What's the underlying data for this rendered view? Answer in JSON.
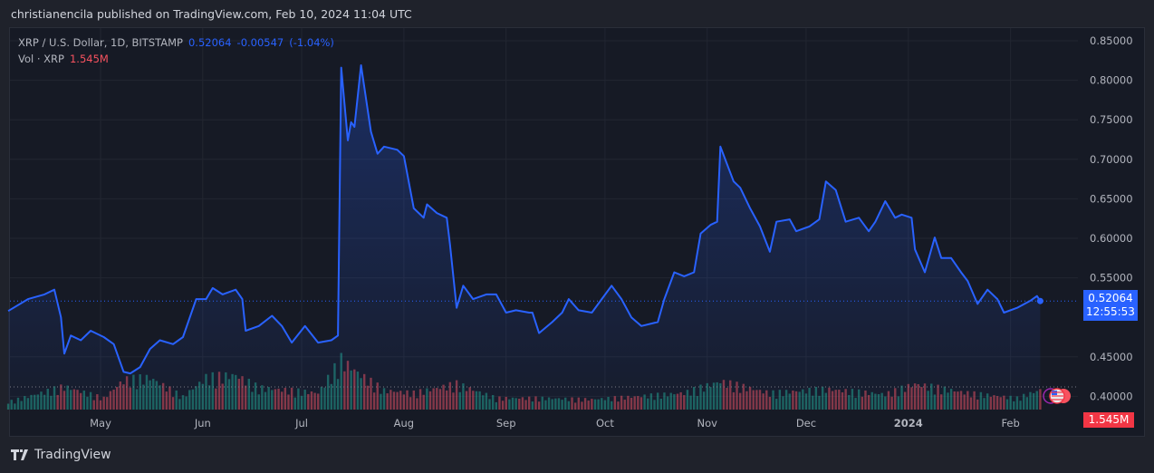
{
  "header": {
    "published": "christianencila published on TradingView.com, Feb 10, 2024 11:04 UTC"
  },
  "legend": {
    "symbol": "XRP / U.S. Dollar, 1D, BITSTAMP",
    "price": "0.52064",
    "change": "-0.00547",
    "change_pct": "(-1.04%)",
    "vol_label": "Vol · XRP",
    "vol_value": "1.545M"
  },
  "price_label": {
    "price": "0.52064",
    "countdown": "12:55:53"
  },
  "volume_label": "1.545M",
  "footer": {
    "brand": "TradingView"
  },
  "colors": {
    "line": "#2962ff",
    "up": "#22ab94",
    "down": "#f7525f",
    "price_tag": "#2962ff",
    "vol_tag": "#f23645"
  },
  "chart_data": {
    "type": "line",
    "ylim": [
      0.4,
      0.85
    ],
    "y_ticks": [
      "0.85000",
      "0.80000",
      "0.75000",
      "0.70000",
      "0.65000",
      "0.60000",
      "0.55000",
      "0.45000",
      "0.40000"
    ],
    "x_ticks": [
      "May",
      "Jun",
      "Jul",
      "Aug",
      "Sep",
      "Oct",
      "Nov",
      "Dec",
      "2024",
      "Feb"
    ],
    "grid": true,
    "series": [
      {
        "points": [
          [
            "2023-04-03",
            0.508
          ],
          [
            "2023-04-09",
            0.523
          ],
          [
            "2023-04-14",
            0.529
          ],
          [
            "2023-04-17",
            0.535
          ],
          [
            "2023-04-19",
            0.5
          ],
          [
            "2023-04-20",
            0.454
          ],
          [
            "2023-04-22",
            0.477
          ],
          [
            "2023-04-25",
            0.471
          ],
          [
            "2023-04-28",
            0.483
          ],
          [
            "2023-05-02",
            0.475
          ],
          [
            "2023-05-05",
            0.466
          ],
          [
            "2023-05-08",
            0.431
          ],
          [
            "2023-05-10",
            0.429
          ],
          [
            "2023-05-13",
            0.437
          ],
          [
            "2023-05-16",
            0.46
          ],
          [
            "2023-05-19",
            0.471
          ],
          [
            "2023-05-23",
            0.466
          ],
          [
            "2023-05-26",
            0.475
          ],
          [
            "2023-05-30",
            0.523
          ],
          [
            "2023-06-02",
            0.523
          ],
          [
            "2023-06-04",
            0.537
          ],
          [
            "2023-06-07",
            0.529
          ],
          [
            "2023-06-11",
            0.535
          ],
          [
            "2023-06-13",
            0.523
          ],
          [
            "2023-06-14",
            0.483
          ],
          [
            "2023-06-18",
            0.489
          ],
          [
            "2023-06-22",
            0.502
          ],
          [
            "2023-06-25",
            0.489
          ],
          [
            "2023-06-28",
            0.468
          ],
          [
            "2023-07-02",
            0.489
          ],
          [
            "2023-07-06",
            0.468
          ],
          [
            "2023-07-10",
            0.471
          ],
          [
            "2023-07-12",
            0.477
          ],
          [
            "2023-07-13",
            0.816
          ],
          [
            "2023-07-15",
            0.724
          ],
          [
            "2023-07-16",
            0.747
          ],
          [
            "2023-07-17",
            0.741
          ],
          [
            "2023-07-19",
            0.819
          ],
          [
            "2023-07-22",
            0.735
          ],
          [
            "2023-07-24",
            0.707
          ],
          [
            "2023-07-26",
            0.716
          ],
          [
            "2023-07-30",
            0.712
          ],
          [
            "2023-08-01",
            0.704
          ],
          [
            "2023-08-04",
            0.638
          ],
          [
            "2023-08-07",
            0.626
          ],
          [
            "2023-08-08",
            0.643
          ],
          [
            "2023-08-11",
            0.632
          ],
          [
            "2023-08-14",
            0.626
          ],
          [
            "2023-08-15",
            0.592
          ],
          [
            "2023-08-17",
            0.512
          ],
          [
            "2023-08-19",
            0.54
          ],
          [
            "2023-08-22",
            0.523
          ],
          [
            "2023-08-26",
            0.529
          ],
          [
            "2023-08-29",
            0.529
          ],
          [
            "2023-09-01",
            0.506
          ],
          [
            "2023-09-04",
            0.509
          ],
          [
            "2023-09-08",
            0.506
          ],
          [
            "2023-09-09",
            0.506
          ],
          [
            "2023-09-11",
            0.48
          ],
          [
            "2023-09-15",
            0.494
          ],
          [
            "2023-09-18",
            0.506
          ],
          [
            "2023-09-20",
            0.523
          ],
          [
            "2023-09-23",
            0.509
          ],
          [
            "2023-09-27",
            0.506
          ],
          [
            "2023-09-30",
            0.523
          ],
          [
            "2023-10-03",
            0.54
          ],
          [
            "2023-10-06",
            0.523
          ],
          [
            "2023-10-09",
            0.5
          ],
          [
            "2023-10-12",
            0.489
          ],
          [
            "2023-10-17",
            0.494
          ],
          [
            "2023-10-19",
            0.523
          ],
          [
            "2023-10-22",
            0.557
          ],
          [
            "2023-10-25",
            0.552
          ],
          [
            "2023-10-28",
            0.557
          ],
          [
            "2023-10-30",
            0.606
          ],
          [
            "2023-11-02",
            0.617
          ],
          [
            "2023-11-04",
            0.621
          ],
          [
            "2023-11-05",
            0.716
          ],
          [
            "2023-11-09",
            0.672
          ],
          [
            "2023-11-11",
            0.664
          ],
          [
            "2023-11-14",
            0.638
          ],
          [
            "2023-11-17",
            0.615
          ],
          [
            "2023-11-20",
            0.583
          ],
          [
            "2023-11-22",
            0.621
          ],
          [
            "2023-11-26",
            0.624
          ],
          [
            "2023-11-28",
            0.609
          ],
          [
            "2023-12-02",
            0.615
          ],
          [
            "2023-12-05",
            0.624
          ],
          [
            "2023-12-07",
            0.672
          ],
          [
            "2023-12-10",
            0.661
          ],
          [
            "2023-12-13",
            0.621
          ],
          [
            "2023-12-17",
            0.626
          ],
          [
            "2023-12-20",
            0.609
          ],
          [
            "2023-12-22",
            0.621
          ],
          [
            "2023-12-25",
            0.647
          ],
          [
            "2023-12-28",
            0.626
          ],
          [
            "2023-12-30",
            0.63
          ],
          [
            "2024-01-02",
            0.626
          ],
          [
            "2024-01-03",
            0.586
          ],
          [
            "2024-01-06",
            0.557
          ],
          [
            "2024-01-09",
            0.601
          ],
          [
            "2024-01-11",
            0.575
          ],
          [
            "2024-01-14",
            0.575
          ],
          [
            "2024-01-17",
            0.557
          ],
          [
            "2024-01-19",
            0.546
          ],
          [
            "2024-01-22",
            0.517
          ],
          [
            "2024-01-25",
            0.535
          ],
          [
            "2024-01-28",
            0.523
          ],
          [
            "2024-01-30",
            0.506
          ],
          [
            "2024-02-03",
            0.512
          ],
          [
            "2024-02-07",
            0.521
          ],
          [
            "2024-02-09",
            0.527
          ],
          [
            "2024-02-10",
            0.52064
          ]
        ]
      }
    ],
    "volume": {
      "unit": "M",
      "last": 1.545,
      "points": [
        [
          "2023-04-03",
          0.6
        ],
        [
          "2023-04-20",
          1.8
        ],
        [
          "2023-05-02",
          0.9
        ],
        [
          "2023-05-08",
          2.3
        ],
        [
          "2023-05-16",
          2.5
        ],
        [
          "2023-05-26",
          1.0
        ],
        [
          "2023-06-02",
          2.5
        ],
        [
          "2023-06-11",
          2.7
        ],
        [
          "2023-06-18",
          1.7
        ],
        [
          "2023-06-28",
          1.5
        ],
        [
          "2023-07-06",
          1.3
        ],
        [
          "2023-07-13",
          3.9
        ],
        [
          "2023-07-19",
          2.7
        ],
        [
          "2023-07-26",
          1.5
        ],
        [
          "2023-08-04",
          1.3
        ],
        [
          "2023-08-17",
          2.0
        ],
        [
          "2023-08-29",
          0.9
        ],
        [
          "2023-09-11",
          0.9
        ],
        [
          "2023-09-27",
          0.8
        ],
        [
          "2023-10-09",
          1.0
        ],
        [
          "2023-10-25",
          1.3
        ],
        [
          "2023-11-05",
          2.2
        ],
        [
          "2023-11-20",
          1.3
        ],
        [
          "2023-12-07",
          1.6
        ],
        [
          "2023-12-25",
          1.2
        ],
        [
          "2024-01-03",
          2.0
        ],
        [
          "2024-01-19",
          1.3
        ],
        [
          "2024-02-03",
          0.9
        ],
        [
          "2024-02-10",
          1.545
        ]
      ]
    }
  }
}
